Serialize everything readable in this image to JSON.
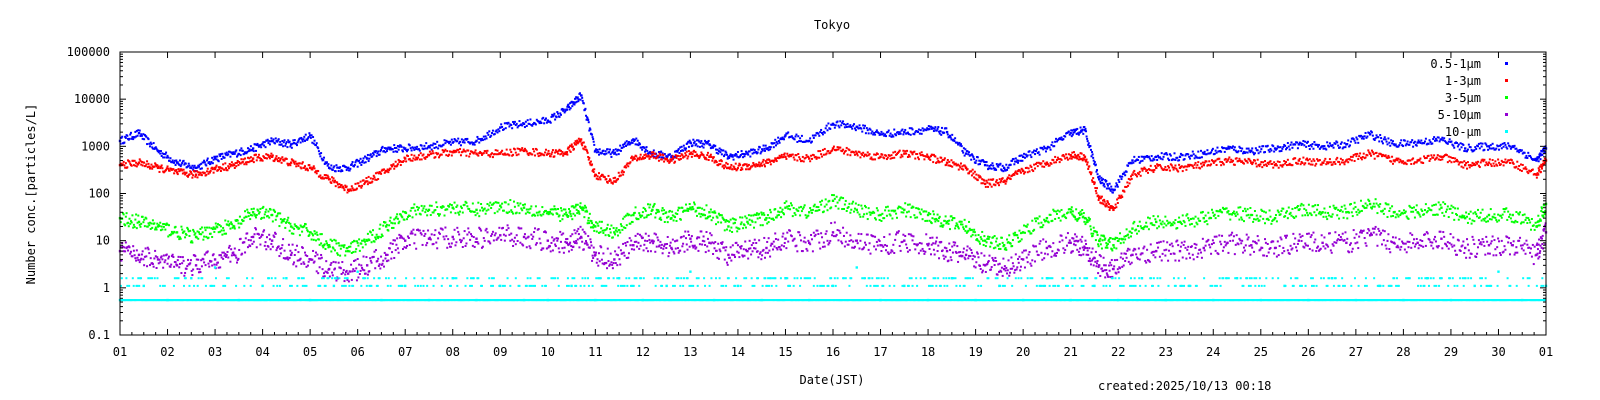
{
  "chart_data": {
    "type": "scatter",
    "title": "Tokyo",
    "xlabel": "Date(JST)",
    "ylabel": "Number conc.[particles/L]",
    "yscale": "log",
    "ylim": [
      0.1,
      100000
    ],
    "xlim": [
      1,
      31
    ],
    "x_ticks": [
      "01",
      "02",
      "03",
      "04",
      "05",
      "06",
      "07",
      "08",
      "09",
      "10",
      "11",
      "12",
      "13",
      "14",
      "15",
      "16",
      "17",
      "18",
      "19",
      "20",
      "21",
      "22",
      "23",
      "24",
      "25",
      "26",
      "27",
      "28",
      "29",
      "30",
      "01"
    ],
    "y_ticks": [
      {
        "value": 0.1,
        "label": "0.1"
      },
      {
        "value": 1,
        "label": "1"
      },
      {
        "value": 10,
        "label": "10"
      },
      {
        "value": 100,
        "label": "100"
      },
      {
        "value": 1000,
        "label": "1000"
      },
      {
        "value": 10000,
        "label": "10000"
      },
      {
        "value": 100000,
        "label": "100000"
      }
    ],
    "legend_position": "top-right",
    "footer": "created:2025/10/13 00:18",
    "series": [
      {
        "name": "0.5-1μm",
        "color": "#0000ff",
        "x": [
          1,
          1.4,
          1.8,
          2.2,
          2.6,
          3,
          3.4,
          3.8,
          4.2,
          4.6,
          5,
          5.4,
          5.8,
          6.2,
          6.6,
          7,
          7.5,
          8,
          8.5,
          9,
          9.5,
          10,
          10.4,
          10.7,
          11,
          11.4,
          11.8,
          12.2,
          12.6,
          13,
          13.4,
          13.8,
          14.2,
          14.6,
          15,
          15.5,
          16,
          16.5,
          17,
          17.5,
          18,
          18.4,
          18.8,
          19.2,
          19.6,
          20,
          20.5,
          21,
          21.3,
          21.6,
          21.9,
          22.3,
          22.8,
          23.3,
          23.8,
          24.3,
          24.8,
          25.3,
          25.8,
          26.3,
          26.8,
          27.3,
          27.8,
          28.3,
          28.8,
          29.3,
          29.8,
          30.3,
          30.8,
          31
        ],
        "y": [
          1300,
          1900,
          800,
          450,
          350,
          550,
          700,
          900,
          1300,
          1100,
          1700,
          350,
          350,
          550,
          900,
          900,
          1000,
          1200,
          1300,
          2500,
          3000,
          3500,
          6000,
          12000,
          800,
          700,
          1400,
          700,
          600,
          1200,
          1100,
          600,
          700,
          900,
          1700,
          1300,
          3000,
          2600,
          1800,
          2000,
          2300,
          2000,
          700,
          400,
          350,
          600,
          900,
          1900,
          2200,
          200,
          120,
          500,
          600,
          600,
          700,
          900,
          800,
          900,
          1100,
          1000,
          1100,
          1800,
          1100,
          1200,
          1400,
          900,
          1000,
          1000,
          500,
          900
        ]
      },
      {
        "name": "1-3μm",
        "color": "#ff0000",
        "x": [
          1,
          1.4,
          1.8,
          2.2,
          2.6,
          3,
          3.4,
          3.8,
          4.2,
          4.6,
          5,
          5.4,
          5.8,
          6.2,
          6.6,
          7,
          7.5,
          8,
          8.5,
          9,
          9.5,
          10,
          10.4,
          10.7,
          11,
          11.4,
          11.8,
          12.2,
          12.6,
          13,
          13.4,
          13.8,
          14.2,
          14.6,
          15,
          15.5,
          16,
          16.5,
          17,
          17.5,
          18,
          18.4,
          18.8,
          19.2,
          19.6,
          20,
          20.5,
          21,
          21.3,
          21.6,
          21.9,
          22.3,
          22.8,
          23.3,
          23.8,
          24.3,
          24.8,
          25.3,
          25.8,
          26.3,
          26.8,
          27.3,
          27.8,
          28.3,
          28.8,
          29.3,
          29.8,
          30.3,
          30.8,
          31
        ],
        "y": [
          400,
          450,
          350,
          280,
          250,
          330,
          400,
          550,
          600,
          450,
          350,
          200,
          120,
          180,
          300,
          550,
          650,
          750,
          700,
          700,
          800,
          700,
          750,
          1400,
          250,
          180,
          550,
          650,
          500,
          700,
          600,
          350,
          380,
          450,
          600,
          550,
          900,
          700,
          600,
          700,
          600,
          450,
          350,
          160,
          180,
          300,
          450,
          650,
          600,
          80,
          45,
          250,
          350,
          350,
          400,
          500,
          450,
          400,
          500,
          450,
          500,
          700,
          500,
          500,
          600,
          400,
          450,
          450,
          250,
          500
        ]
      },
      {
        "name": "3-5μm",
        "color": "#00ff00",
        "x": [
          1,
          1.4,
          1.8,
          2.2,
          2.6,
          3,
          3.4,
          3.8,
          4.2,
          4.6,
          5,
          5.4,
          5.8,
          6.2,
          6.6,
          7,
          7.5,
          8,
          8.5,
          9,
          9.5,
          10,
          10.4,
          10.7,
          11,
          11.4,
          11.8,
          12.2,
          12.6,
          13,
          13.4,
          13.8,
          14.2,
          14.6,
          15,
          15.5,
          16,
          16.5,
          17,
          17.5,
          18,
          18.4,
          18.8,
          19.2,
          19.6,
          20,
          20.5,
          21,
          21.3,
          21.6,
          21.9,
          22.3,
          22.8,
          23.3,
          23.8,
          24.3,
          24.8,
          25.3,
          25.8,
          26.3,
          26.8,
          27.3,
          27.8,
          28.3,
          28.8,
          29.3,
          29.8,
          30.3,
          30.8,
          31
        ],
        "y": [
          30,
          25,
          20,
          15,
          12,
          18,
          20,
          40,
          35,
          20,
          15,
          8,
          6,
          10,
          20,
          40,
          45,
          50,
          45,
          55,
          50,
          40,
          35,
          50,
          20,
          15,
          35,
          45,
          30,
          50,
          40,
          20,
          25,
          30,
          50,
          40,
          70,
          45,
          35,
          45,
          35,
          25,
          20,
          10,
          8,
          15,
          30,
          40,
          30,
          10,
          8,
          18,
          25,
          25,
          30,
          40,
          35,
          30,
          45,
          40,
          40,
          60,
          40,
          40,
          50,
          30,
          35,
          35,
          20,
          60
        ]
      },
      {
        "name": "5-10μm",
        "color": "#9400d3",
        "x": [
          1,
          1.4,
          1.8,
          2.2,
          2.6,
          3,
          3.4,
          3.8,
          4.2,
          4.6,
          5,
          5.4,
          5.8,
          6.2,
          6.6,
          7,
          7.5,
          8,
          8.5,
          9,
          9.5,
          10,
          10.4,
          10.7,
          11,
          11.4,
          11.8,
          12.2,
          12.6,
          13,
          13.4,
          13.8,
          14.2,
          14.6,
          15,
          15.5,
          16,
          16.5,
          17,
          17.5,
          18,
          18.4,
          18.8,
          19.2,
          19.6,
          20,
          20.5,
          21,
          21.3,
          21.6,
          21.9,
          22.3,
          22.8,
          23.3,
          23.8,
          24.3,
          24.8,
          25.3,
          25.8,
          26.3,
          26.8,
          27.3,
          27.8,
          28.3,
          28.8,
          29.3,
          29.8,
          30.3,
          30.8,
          31
        ],
        "y": [
          6,
          5,
          4,
          3,
          3,
          4,
          5,
          12,
          10,
          5,
          4,
          2.5,
          2,
          3,
          5,
          10,
          11,
          12,
          11,
          13,
          12,
          10,
          9,
          12,
          5,
          4,
          8,
          10,
          7,
          11,
          9,
          5,
          6,
          7,
          11,
          9,
          15,
          10,
          8,
          10,
          8,
          6,
          5,
          3,
          2.5,
          4,
          7,
          9,
          7,
          3,
          2.5,
          5,
          6,
          6,
          7,
          9,
          8,
          7,
          10,
          9,
          9,
          13,
          9,
          9,
          11,
          7,
          8,
          8,
          5,
          15
        ]
      },
      {
        "name": "10-μm",
        "color": "#00ffff",
        "x": [
          1,
          1.5,
          2,
          2.5,
          3,
          3.5,
          4,
          4.5,
          5,
          5.5,
          6,
          6.5,
          7,
          7.5,
          8,
          8.5,
          9,
          9.5,
          10,
          10.5,
          11,
          11.5,
          12,
          12.5,
          13,
          13.5,
          14,
          14.5,
          15,
          15.5,
          16,
          16.5,
          17,
          17.5,
          18,
          18.5,
          19,
          19.5,
          20,
          20.5,
          21,
          21.5,
          22,
          22.5,
          23,
          23.5,
          24,
          24.5,
          25,
          25.5,
          26,
          26.5,
          27,
          27.5,
          28,
          28.5,
          29,
          29.5,
          30,
          30.5,
          31
        ],
        "y": [
          0.55,
          1.1,
          0.55,
          1.6,
          2.7,
          0.55,
          1.1,
          1.6,
          0.55,
          1.1,
          2.2,
          0.55,
          1.1,
          0.55,
          1.6,
          0.55,
          1.1,
          0.55,
          0.55,
          1.1,
          0.55,
          1.6,
          0.55,
          1.1,
          2.2,
          0.55,
          1.1,
          0.55,
          1.6,
          0.55,
          1.1,
          2.7,
          0.55,
          1.1,
          0.55,
          1.6,
          0.55,
          1.1,
          0.55,
          1.6,
          0.55,
          1.1,
          0.55,
          1.6,
          0.55,
          1.1,
          0.55,
          1.6,
          0.55,
          1.1,
          0.55,
          1.6,
          0.55,
          1.1,
          0.55,
          1.6,
          0.55,
          1.1,
          2.2,
          0.55,
          1.1
        ]
      }
    ]
  }
}
